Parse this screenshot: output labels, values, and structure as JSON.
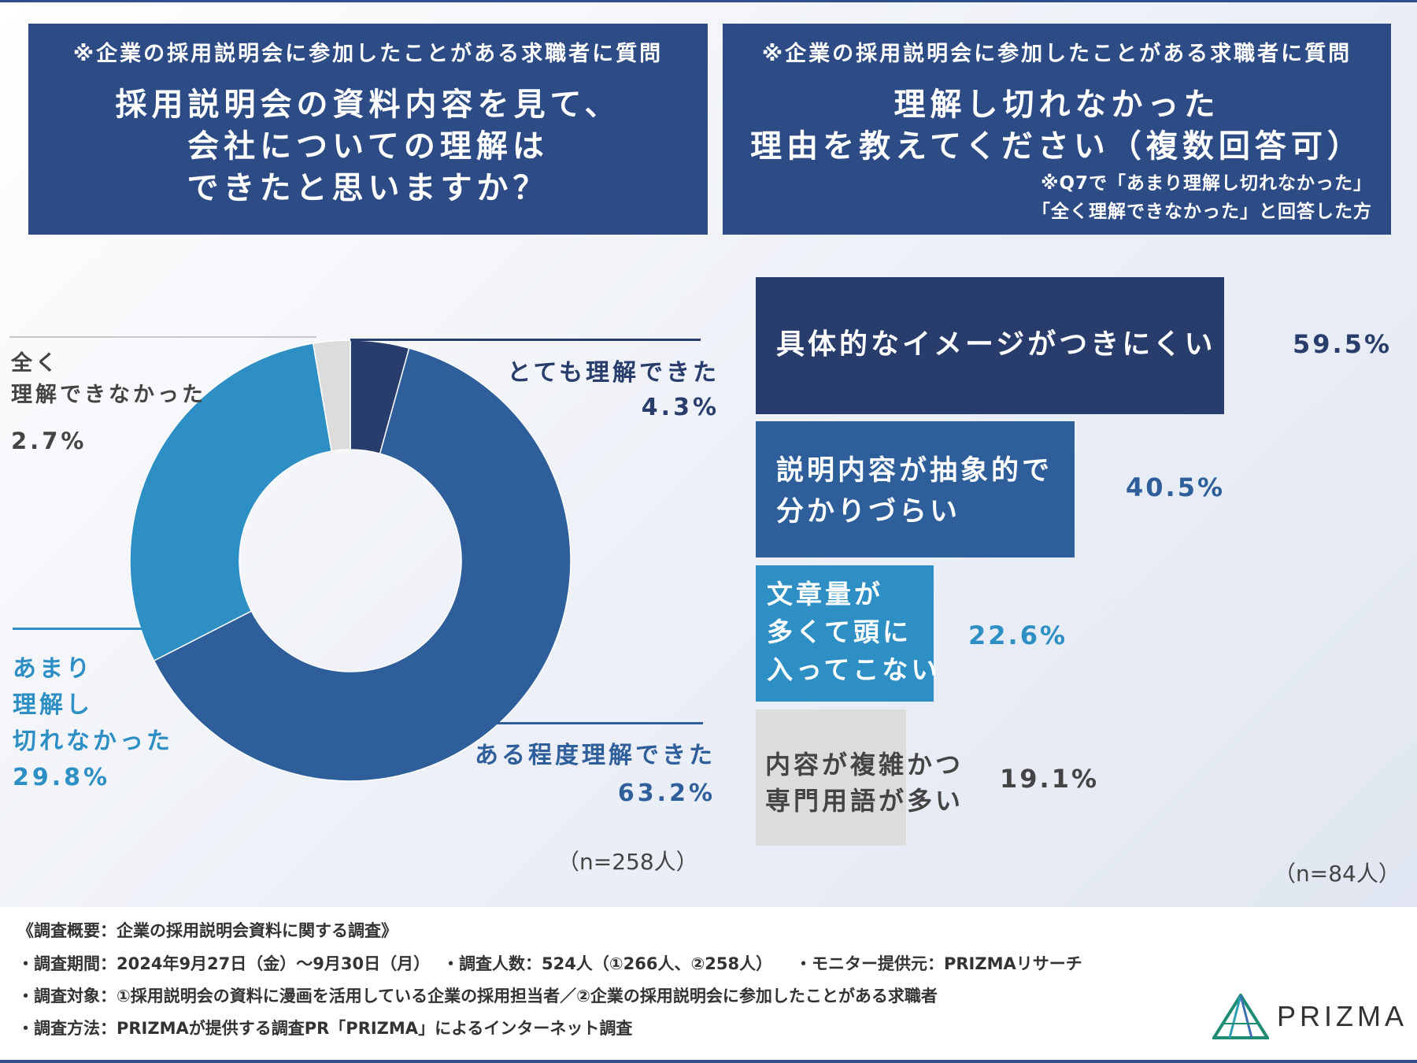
{
  "left_panel": {
    "note": "※企業の採用説明会に参加したことがある求職者に質問",
    "question_lines": [
      "採用説明会の資料内容を見て、",
      "会社についての理解は",
      "できたと思いますか？"
    ]
  },
  "right_panel": {
    "note": "※企業の採用説明会に参加したことがある求職者に質問",
    "question_lines": [
      "理解し切れなかった",
      "理由を教えてください（複数回答可）"
    ],
    "sub_lines": [
      "※Q7で「あまり理解し切れなかった」",
      "「全く理解できなかった」と回答した方"
    ]
  },
  "colors": {
    "navy": "#2d4b84",
    "dark_navy": "#283d6b",
    "mid_blue": "#2f5f9b",
    "light_blue": "#2e8fc4",
    "gray": "#dcdcdc"
  },
  "chart_data": [
    {
      "type": "pie",
      "subtype": "donut",
      "sample": "（n=258人）",
      "slices": [
        {
          "label_lines": [
            "とても理解できた"
          ],
          "value": 4.3,
          "value_text": "4.3%",
          "color": "#283d6b",
          "text_color": "#283d6b"
        },
        {
          "label_lines": [
            "ある程度理解できた"
          ],
          "value": 63.2,
          "value_text": "63.2%",
          "color": "#2f5f9b",
          "text_color": "#2f5f9b"
        },
        {
          "label_lines": [
            "あまり",
            "理解し",
            "切れなかった"
          ],
          "value": 29.8,
          "value_text": "29.8%",
          "color": "#2e8fc4",
          "text_color": "#2e8fc4"
        },
        {
          "label_lines": [
            "全く",
            "理解できなかった"
          ],
          "value": 2.7,
          "value_text": "2.7%",
          "color": "#dcdcdc",
          "text_color": "#444444"
        }
      ]
    },
    {
      "type": "bar",
      "orientation": "horizontal",
      "sample": "（n=84人）",
      "xlim": [
        0,
        100
      ],
      "categories": [
        [
          "具体的なイメージがつきにくい"
        ],
        [
          "説明内容が抽象的で",
          "分かりづらい"
        ],
        [
          "文章量が",
          "多くて頭に",
          "入ってこない"
        ],
        [
          "内容が複雑かつ",
          "専門用語が多い"
        ]
      ],
      "values": [
        59.5,
        40.5,
        22.6,
        19.1
      ],
      "value_texts": [
        "59.5%",
        "40.5%",
        "22.6%",
        "19.1%"
      ],
      "bar_colors": [
        "#283d6b",
        "#2f5f9b",
        "#2e8fc4",
        "#dcdcdc"
      ],
      "label_colors": [
        "#ffffff",
        "#ffffff",
        "#ffffff",
        "#444444"
      ],
      "value_colors": [
        "#283d6b",
        "#2f5f9b",
        "#2e8fc4",
        "#444444"
      ]
    }
  ],
  "footer": {
    "title": "《調査概要：企業の採用説明会資料に関する調査》",
    "period": "・調査期間：2024年9月27日（金）〜9月30日（月）",
    "count": "・調査人数：524人（①266人、②258人）",
    "provider": "・モニター提供元：PRIZMAリサーチ",
    "target": "・調査対象：①採用説明会の資料に漫画を活用している企業の採用担当者／②企業の採用説明会に参加したことがある求職者",
    "method": "・調査方法：PRIZMAが提供する調査PR「PRIZMA」によるインターネット調査"
  },
  "logo": {
    "text": "PRIZMA",
    "icon": "prizma-triangle-icon"
  }
}
